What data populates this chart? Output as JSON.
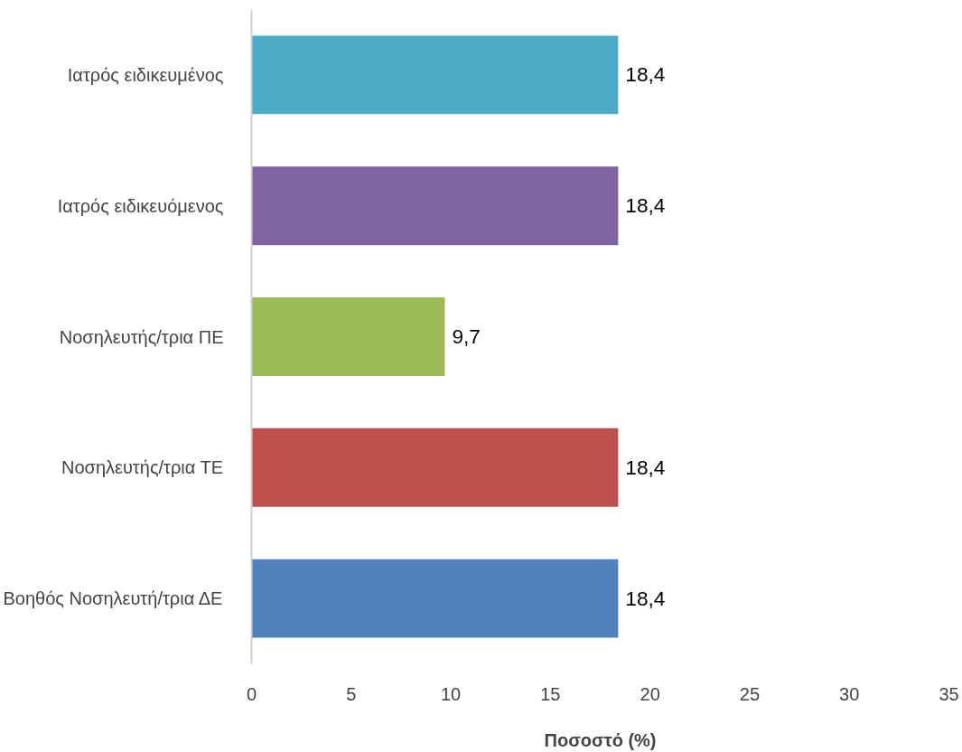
{
  "chart_data": {
    "type": "bar",
    "orientation": "horizontal",
    "xlabel": "Ποσοστό (%)",
    "categories": [
      "Ιατρός ειδικευμένος",
      "Ιατρός ειδικευόμενος",
      "Νοσηλευτής/τρια ΠΕ",
      "Νοσηλευτής/τρια ΤΕ",
      "Βοηθός Νοσηλευτή/τρια ΔΕ"
    ],
    "values": [
      18.4,
      18.4,
      9.7,
      18.4,
      18.4
    ],
    "value_labels": [
      "18,4",
      "18,4",
      "9,7",
      "18,4",
      "18,4"
    ],
    "colors": [
      "#4bacc6",
      "#8064a2",
      "#9bbb59",
      "#c0504d",
      "#4f81bd"
    ],
    "xlim": [
      0,
      35
    ],
    "xticks": [
      0,
      5,
      10,
      15,
      20,
      25,
      30,
      35
    ],
    "grid": false
  }
}
